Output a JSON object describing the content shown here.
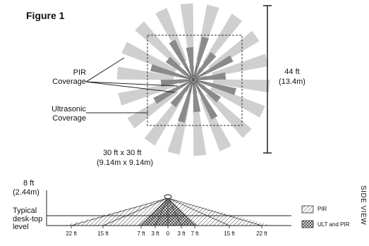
{
  "figure": {
    "title": "Figure 1",
    "pir_label": "PIR\nCoverage",
    "ultrasonic_label": "Ultrasonic\nCoverage",
    "height_ft": "44 ft",
    "height_m": "(13.4m)",
    "area_ft": "30 ft x 30 ft",
    "area_m": "(9.14m x 9.14m)"
  },
  "side_view": {
    "title": "SIDE VIEW",
    "mount_height_ft": "8 ft",
    "mount_height_m": "(2.44m)",
    "desk_label": "Typical\ndesk-top\nlevel",
    "ticks": [
      "22 ft",
      "15 ft",
      "7 ft",
      "3 ft",
      "0",
      "3 ft",
      "7 ft",
      "15 ft",
      "22 ft"
    ],
    "legend": [
      {
        "label": "PIR",
        "pattern": "hatch"
      },
      {
        "label": "ULT and PIR",
        "pattern": "crosshatch"
      }
    ]
  },
  "colors": {
    "pir_beam": "#cfcfcf",
    "ultrasonic_beam": "#8a8a8a",
    "line": "#222222"
  }
}
